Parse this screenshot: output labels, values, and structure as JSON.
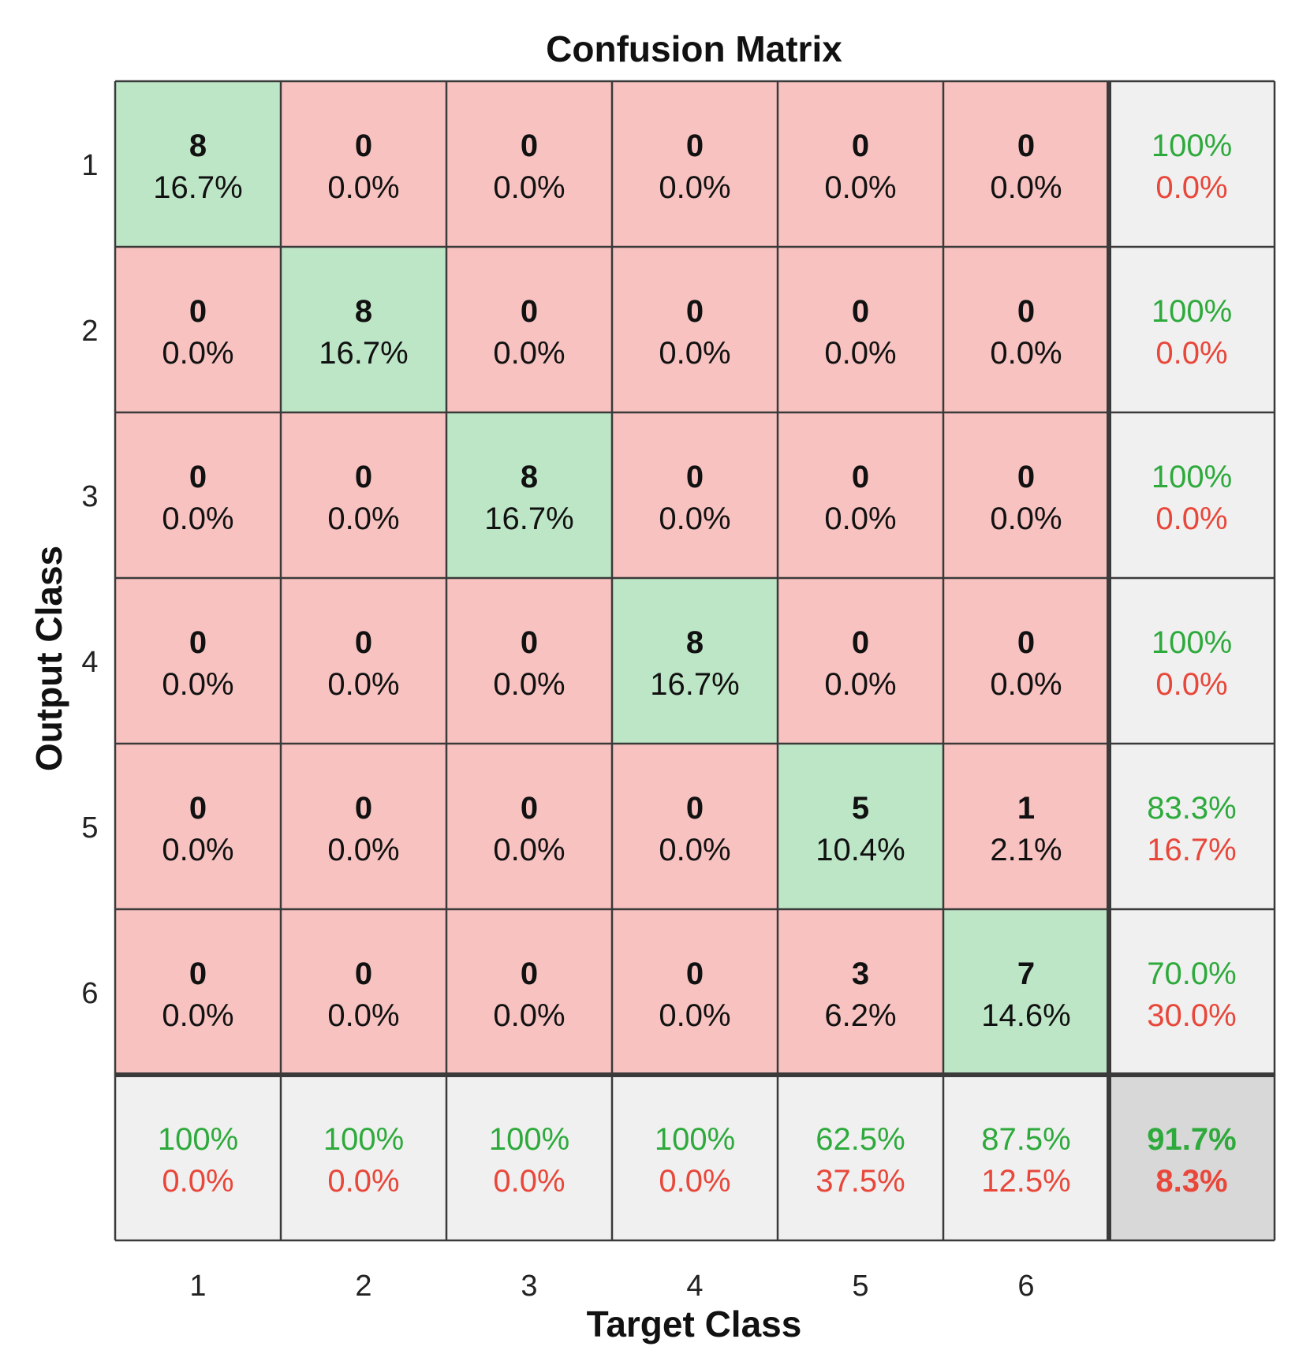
{
  "chart_data": {
    "type": "heatmap",
    "title": "Confusion Matrix",
    "xlabel": "Target Class",
    "ylabel": "Output Class",
    "x_tick_labels": [
      "1",
      "2",
      "3",
      "4",
      "5",
      "6"
    ],
    "y_tick_labels": [
      "1",
      "2",
      "3",
      "4",
      "5",
      "6"
    ],
    "matrix": [
      [
        8,
        0,
        0,
        0,
        0,
        0
      ],
      [
        0,
        8,
        0,
        0,
        0,
        0
      ],
      [
        0,
        0,
        8,
        0,
        0,
        0
      ],
      [
        0,
        0,
        0,
        8,
        0,
        0
      ],
      [
        0,
        0,
        0,
        0,
        5,
        1
      ],
      [
        0,
        0,
        0,
        0,
        3,
        7
      ]
    ],
    "matrix_percent": [
      [
        "16.7%",
        "0.0%",
        "0.0%",
        "0.0%",
        "0.0%",
        "0.0%"
      ],
      [
        "0.0%",
        "16.7%",
        "0.0%",
        "0.0%",
        "0.0%",
        "0.0%"
      ],
      [
        "0.0%",
        "0.0%",
        "16.7%",
        "0.0%",
        "0.0%",
        "0.0%"
      ],
      [
        "0.0%",
        "0.0%",
        "0.0%",
        "16.7%",
        "0.0%",
        "0.0%"
      ],
      [
        "0.0%",
        "0.0%",
        "0.0%",
        "0.0%",
        "10.4%",
        "2.1%"
      ],
      [
        "0.0%",
        "0.0%",
        "0.0%",
        "0.0%",
        "6.2%",
        "14.6%"
      ]
    ],
    "row_summary": [
      {
        "correct": "100%",
        "incorrect": "0.0%"
      },
      {
        "correct": "100%",
        "incorrect": "0.0%"
      },
      {
        "correct": "100%",
        "incorrect": "0.0%"
      },
      {
        "correct": "100%",
        "incorrect": "0.0%"
      },
      {
        "correct": "83.3%",
        "incorrect": "16.7%"
      },
      {
        "correct": "70.0%",
        "incorrect": "30.0%"
      }
    ],
    "column_summary": [
      {
        "correct": "100%",
        "incorrect": "0.0%"
      },
      {
        "correct": "100%",
        "incorrect": "0.0%"
      },
      {
        "correct": "100%",
        "incorrect": "0.0%"
      },
      {
        "correct": "100%",
        "incorrect": "0.0%"
      },
      {
        "correct": "62.5%",
        "incorrect": "37.5%"
      },
      {
        "correct": "87.5%",
        "incorrect": "12.5%"
      }
    ],
    "overall": {
      "correct": "91.7%",
      "incorrect": "8.3%"
    },
    "colors": {
      "diagonal": "#bde6c6",
      "off_diagonal": "#f7c2c0",
      "summary": "#f0f0f0",
      "overall": "#d8d8d8",
      "correct_text": "#2eaa3c",
      "incorrect_text": "#e8473a",
      "grid": "#3a3a3a",
      "text": "#111111"
    }
  }
}
